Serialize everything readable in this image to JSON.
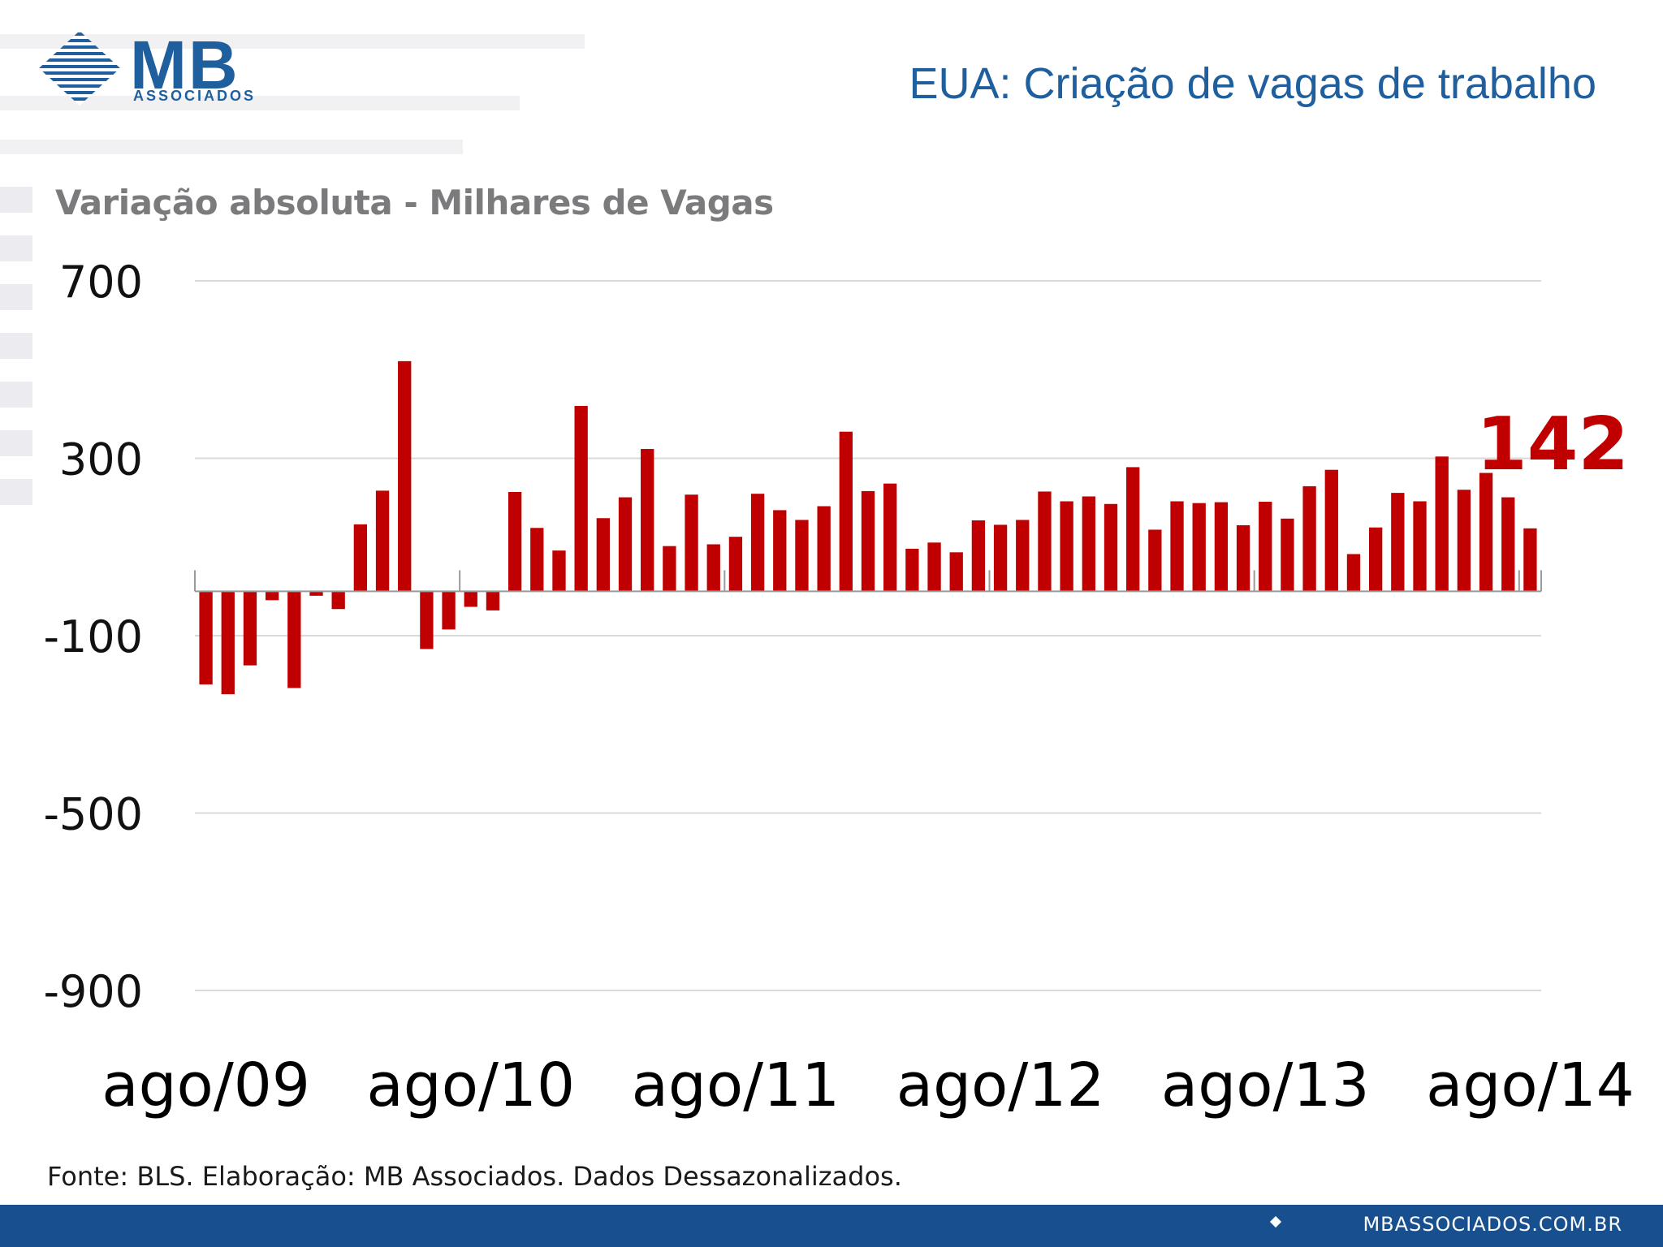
{
  "logo": {
    "brand": "MB",
    "sub": "ASSOCIADOS"
  },
  "header": {
    "title": "EUA: Criação de vagas de trabalho"
  },
  "footer": {
    "source": "Fonte: BLS. Elaboração: MB Associados. Dados Dessazonalizados.",
    "url": "MBASSOCIADOS.COM.BR"
  },
  "colors": {
    "bar": "#c00000",
    "title": "#1f5f9e",
    "footer_bar": "#174f8f",
    "grid": "#d9d9d9"
  },
  "chart_data": {
    "type": "bar",
    "title": "Variação absoluta - Milhares de Vagas",
    "ylim": [
      -900,
      700
    ],
    "yticks": [
      700,
      300,
      -100,
      -500,
      -900
    ],
    "x_tick_labels": [
      "ago/09",
      "ago/10",
      "ago/11",
      "ago/12",
      "ago/13",
      "ago/14"
    ],
    "grid": true,
    "highlight_value": "142",
    "series": [
      {
        "values": [
          -210,
          -232,
          -167,
          -20,
          -218,
          -10,
          -40,
          151,
          227,
          519,
          -130,
          -86,
          -35,
          -43,
          224,
          143,
          92,
          418,
          165,
          212,
          321,
          102,
          218,
          106,
          123,
          220,
          183,
          161,
          192,
          360,
          226,
          243,
          96,
          110,
          88,
          160,
          150,
          161,
          225,
          203,
          214,
          197,
          280,
          139,
          203,
          199,
          201,
          149,
          202,
          164,
          237,
          274,
          84,
          144,
          222,
          203,
          304,
          229,
          267,
          212,
          142
        ]
      }
    ]
  }
}
